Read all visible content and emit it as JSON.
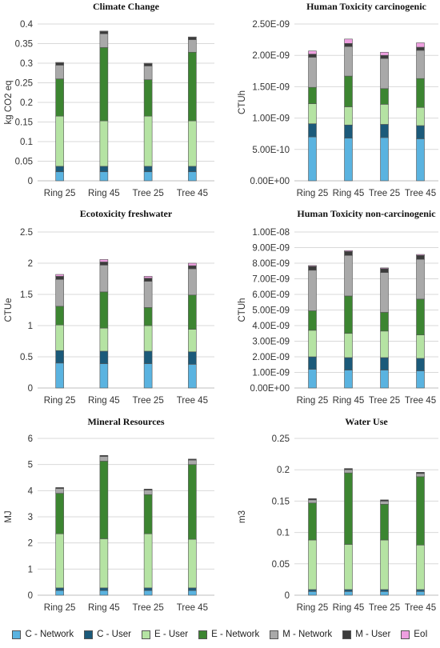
{
  "legend": [
    {
      "label": "C - Network",
      "color": "#5ab3e0"
    },
    {
      "label": "C - User",
      "color": "#1b5a7a"
    },
    {
      "label": "E - User",
      "color": "#b5e3a3"
    },
    {
      "label": "E - Network",
      "color": "#3c8531"
    },
    {
      "label": "M - Network",
      "color": "#a9a9a9"
    },
    {
      "label": "M - User",
      "color": "#3b3b3b"
    },
    {
      "label": "EoI",
      "color": "#ee9fe0"
    }
  ],
  "chart_data": [
    {
      "type": "bar",
      "stacked": true,
      "title": "Climate Change",
      "ylabel": "kg CO2 eq",
      "categories": [
        "Ring 25",
        "Ring 45",
        "Tree 25",
        "Tree 45"
      ],
      "ylim": [
        0,
        0.4
      ],
      "yticks": [
        "0",
        "0.05",
        "0.1",
        "0.15",
        "0.2",
        "0.25",
        "0.3",
        "0.35",
        "0.4"
      ],
      "grid": true,
      "series": [
        {
          "name": "C - Network",
          "values": [
            0.023,
            0.023,
            0.023,
            0.023
          ]
        },
        {
          "name": "C - User",
          "values": [
            0.014,
            0.014,
            0.014,
            0.014
          ]
        },
        {
          "name": "E - User",
          "values": [
            0.128,
            0.116,
            0.128,
            0.116
          ]
        },
        {
          "name": "E - Network",
          "values": [
            0.095,
            0.187,
            0.093,
            0.175
          ]
        },
        {
          "name": "M - Network",
          "values": [
            0.035,
            0.035,
            0.035,
            0.032
          ]
        },
        {
          "name": "M - User",
          "values": [
            0.006,
            0.006,
            0.006,
            0.006
          ]
        },
        {
          "name": "EoI",
          "values": [
            0.001,
            0.001,
            0.001,
            0.001
          ]
        }
      ]
    },
    {
      "type": "bar",
      "stacked": true,
      "title": "Human Toxicity carcinogenic",
      "ylabel": "CTUh",
      "categories": [
        "Ring 25",
        "Ring 45",
        "Tree 25",
        "Tree 45"
      ],
      "ylim": [
        0,
        2.5e-09
      ],
      "yticks": [
        "0.00E+00",
        "5.00E-10",
        "1.00E-09",
        "1.50E-09",
        "2.00E-09",
        "2.50E-09"
      ],
      "grid": true,
      "series": [
        {
          "name": "C - Network",
          "values": [
            7e-10,
            6.8e-10,
            6.9e-10,
            6.7e-10
          ]
        },
        {
          "name": "C - User",
          "values": [
            2.1e-10,
            2.1e-10,
            2.1e-10,
            2.1e-10
          ]
        },
        {
          "name": "E - User",
          "values": [
            3.2e-10,
            2.9e-10,
            3.2e-10,
            2.9e-10
          ]
        },
        {
          "name": "E - Network",
          "values": [
            2.6e-10,
            4.9e-10,
            2.5e-10,
            4.6e-10
          ]
        },
        {
          "name": "M - Network",
          "values": [
            4.8e-10,
            4.7e-10,
            4.8e-10,
            4.5e-10
          ]
        },
        {
          "name": "M - User",
          "values": [
            5e-11,
            5e-11,
            5e-11,
            5e-11
          ]
        },
        {
          "name": "EoI",
          "values": [
            5e-11,
            7e-11,
            5e-11,
            7e-11
          ]
        }
      ]
    },
    {
      "type": "bar",
      "stacked": true,
      "title": "Ecotoxicity freshwater",
      "ylabel": "CTUe",
      "categories": [
        "Ring 25",
        "Ring 45",
        "Tree 25",
        "Tree 45"
      ],
      "ylim": [
        0,
        2.5
      ],
      "yticks": [
        "0",
        "0.5",
        "1",
        "1.5",
        "2",
        "2.5"
      ],
      "grid": true,
      "series": [
        {
          "name": "C - Network",
          "values": [
            0.4,
            0.39,
            0.39,
            0.38
          ]
        },
        {
          "name": "C - User",
          "values": [
            0.2,
            0.2,
            0.2,
            0.2
          ]
        },
        {
          "name": "E - User",
          "values": [
            0.41,
            0.37,
            0.41,
            0.36
          ]
        },
        {
          "name": "E - Network",
          "values": [
            0.3,
            0.58,
            0.29,
            0.55
          ]
        },
        {
          "name": "M - Network",
          "values": [
            0.43,
            0.43,
            0.42,
            0.42
          ]
        },
        {
          "name": "M - User",
          "values": [
            0.05,
            0.05,
            0.05,
            0.05
          ]
        },
        {
          "name": "EoI",
          "values": [
            0.03,
            0.04,
            0.03,
            0.04
          ]
        }
      ]
    },
    {
      "type": "bar",
      "stacked": true,
      "title": "Human Toxicity non-carcinogenic",
      "ylabel": "CTUh",
      "categories": [
        "Ring 25",
        "Ring 45",
        "Tree 25",
        "Tree 45"
      ],
      "ylim": [
        0,
        1e-08
      ],
      "yticks": [
        "0.00E+00",
        "1.00E-09",
        "2.00E-09",
        "3.00E-09",
        "4.00E-09",
        "5.00E-09",
        "6.00E-09",
        "7.00E-09",
        "8.00E-09",
        "9.00E-09",
        "1.00E-08"
      ],
      "grid": true,
      "series": [
        {
          "name": "C - Network",
          "values": [
            1.2e-09,
            1.15e-09,
            1.15e-09,
            1.1e-09
          ]
        },
        {
          "name": "C - User",
          "values": [
            8e-10,
            8e-10,
            8e-10,
            8e-10
          ]
        },
        {
          "name": "E - User",
          "values": [
            1.7e-09,
            1.55e-09,
            1.7e-09,
            1.5e-09
          ]
        },
        {
          "name": "E - Network",
          "values": [
            1.25e-09,
            2.4e-09,
            1.2e-09,
            2.3e-09
          ]
        },
        {
          "name": "M - Network",
          "values": [
            2.6e-09,
            2.6e-09,
            2.55e-09,
            2.55e-09
          ]
        },
        {
          "name": "M - User",
          "values": [
            2.5e-10,
            2.5e-10,
            2.5e-10,
            2.5e-10
          ]
        },
        {
          "name": "EoI",
          "values": [
            5e-11,
            6e-11,
            5e-11,
            6e-11
          ]
        }
      ]
    },
    {
      "type": "bar",
      "stacked": true,
      "title": "Mineral Resources",
      "ylabel": "MJ",
      "categories": [
        "Ring 25",
        "Ring 45",
        "Tree 25",
        "Tree 45"
      ],
      "ylim": [
        0,
        6
      ],
      "yticks": [
        "0",
        "1",
        "2",
        "3",
        "4",
        "5",
        "6"
      ],
      "grid": true,
      "series": [
        {
          "name": "C - Network",
          "values": [
            0.18,
            0.18,
            0.18,
            0.18
          ]
        },
        {
          "name": "C - User",
          "values": [
            0.1,
            0.1,
            0.1,
            0.1
          ]
        },
        {
          "name": "E - User",
          "values": [
            2.07,
            1.88,
            2.07,
            1.86
          ]
        },
        {
          "name": "E - Network",
          "values": [
            1.55,
            2.97,
            1.5,
            2.86
          ]
        },
        {
          "name": "M - Network",
          "values": [
            0.18,
            0.18,
            0.17,
            0.17
          ]
        },
        {
          "name": "M - User",
          "values": [
            0.04,
            0.04,
            0.04,
            0.04
          ]
        },
        {
          "name": "EoI",
          "values": [
            0.0,
            0.0,
            0.0,
            0.0
          ]
        }
      ]
    },
    {
      "type": "bar",
      "stacked": true,
      "title": "Water Use",
      "ylabel": "m3",
      "categories": [
        "Ring 25",
        "Ring 45",
        "Tree 25",
        "Tree 45"
      ],
      "ylim": [
        0,
        0.25
      ],
      "yticks": [
        "0",
        "0.05",
        "0.1",
        "0.15",
        "0.2",
        "0.25"
      ],
      "grid": true,
      "series": [
        {
          "name": "C - Network",
          "values": [
            0.006,
            0.006,
            0.006,
            0.006
          ]
        },
        {
          "name": "C - User",
          "values": [
            0.003,
            0.003,
            0.003,
            0.003
          ]
        },
        {
          "name": "E - User",
          "values": [
            0.079,
            0.072,
            0.079,
            0.071
          ]
        },
        {
          "name": "E - Network",
          "values": [
            0.059,
            0.114,
            0.057,
            0.109
          ]
        },
        {
          "name": "M - Network",
          "values": [
            0.005,
            0.005,
            0.005,
            0.005
          ]
        },
        {
          "name": "M - User",
          "values": [
            0.002,
            0.002,
            0.002,
            0.002
          ]
        },
        {
          "name": "EoI",
          "values": [
            0.0,
            0.0,
            0.0,
            0.0
          ]
        }
      ]
    }
  ]
}
